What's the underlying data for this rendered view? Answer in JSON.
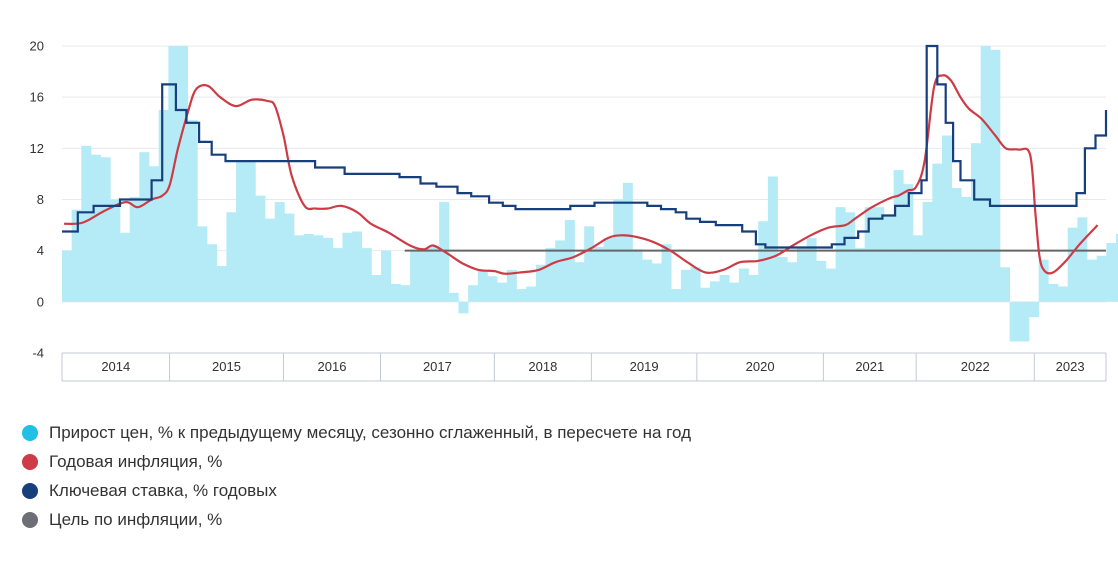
{
  "chart_data": {
    "type": "bar+line",
    "title": "",
    "ylim": [
      -4,
      20
    ],
    "yticks": [
      20,
      16,
      12,
      8,
      4,
      0,
      -4
    ],
    "xlim": [
      2013.9,
      2023.8
    ],
    "year_labels": [
      {
        "label": "2014",
        "from": 2013.9,
        "to": 2014.92
      },
      {
        "label": "2015",
        "from": 2014.92,
        "to": 2016.0
      },
      {
        "label": "2016",
        "from": 2016.0,
        "to": 2016.92
      },
      {
        "label": "2017",
        "from": 2016.92,
        "to": 2018.0
      },
      {
        "label": "2018",
        "from": 2018.0,
        "to": 2018.92
      },
      {
        "label": "2019",
        "from": 2018.92,
        "to": 2019.92
      },
      {
        "label": "2020",
        "from": 2019.92,
        "to": 2021.12
      },
      {
        "label": "2021",
        "from": 2021.12,
        "to": 2022.0
      },
      {
        "label": "2022",
        "from": 2022.0,
        "to": 2023.12
      },
      {
        "label": "2023",
        "from": 2023.12,
        "to": 2023.8
      }
    ],
    "series": [
      {
        "name": "Прирост цен, % к предыдущему месяцу, сезонно сглаженный, в пересчете на год",
        "type": "bar",
        "color": "#b4ebf6",
        "x_start": 2013.9,
        "step": 0.0917,
        "values": [
          4.0,
          7.2,
          12.2,
          11.5,
          11.3,
          8.0,
          5.4,
          8.2,
          11.7,
          10.6,
          15.0,
          20.0,
          20.0,
          14.2,
          5.9,
          4.5,
          2.8,
          7.0,
          11.0,
          11.0,
          8.3,
          6.5,
          7.8,
          6.9,
          5.2,
          5.3,
          5.2,
          5.0,
          4.2,
          5.4,
          5.5,
          4.2,
          2.1,
          4.0,
          1.4,
          1.3,
          4.0,
          4.2,
          4.4,
          7.8,
          0.7,
          -0.9,
          1.3,
          2.5,
          2.0,
          1.5,
          2.5,
          1.0,
          1.2,
          2.9,
          4.2,
          4.8,
          6.4,
          3.1,
          5.9,
          4.3,
          5.0,
          8.0,
          9.3,
          4.1,
          3.3,
          3.0,
          4.5,
          1.0,
          2.5,
          2.7,
          1.1,
          1.6,
          2.1,
          1.5,
          2.6,
          2.1,
          6.3,
          9.8,
          3.5,
          3.1,
          4.3,
          5.0,
          3.2,
          2.6,
          7.4,
          7.0,
          4.2,
          7.4,
          7.4,
          6.8,
          10.3,
          9.2,
          5.2,
          7.8,
          10.8,
          13.0,
          8.9,
          8.2,
          12.4,
          20.0,
          19.7,
          2.7,
          -3.1,
          -3.1,
          -1.2,
          3.3,
          1.4,
          1.2,
          5.8,
          6.6,
          3.3,
          3.6,
          4.6,
          5.3,
          5.7,
          12.3,
          11.0,
          14.5
        ]
      },
      {
        "name": "Годовая инфляция, %",
        "type": "line",
        "color": "#cd3c46",
        "points": [
          [
            2013.92,
            6.1
          ],
          [
            2014.1,
            6.2
          ],
          [
            2014.3,
            7.1
          ],
          [
            2014.5,
            7.8
          ],
          [
            2014.62,
            7.4
          ],
          [
            2014.75,
            8.0
          ],
          [
            2014.85,
            8.3
          ],
          [
            2014.92,
            9.1
          ],
          [
            2015.0,
            12.0
          ],
          [
            2015.1,
            15.0
          ],
          [
            2015.17,
            16.6
          ],
          [
            2015.28,
            16.9
          ],
          [
            2015.4,
            16.0
          ],
          [
            2015.55,
            15.3
          ],
          [
            2015.7,
            15.8
          ],
          [
            2015.85,
            15.7
          ],
          [
            2015.92,
            15.3
          ],
          [
            2016.0,
            13.0
          ],
          [
            2016.08,
            9.8
          ],
          [
            2016.2,
            7.5
          ],
          [
            2016.3,
            7.3
          ],
          [
            2016.42,
            7.3
          ],
          [
            2016.55,
            7.5
          ],
          [
            2016.7,
            7.0
          ],
          [
            2016.83,
            6.1
          ],
          [
            2017.0,
            5.4
          ],
          [
            2017.2,
            4.4
          ],
          [
            2017.33,
            4.1
          ],
          [
            2017.42,
            4.4
          ],
          [
            2017.55,
            3.8
          ],
          [
            2017.7,
            3.0
          ],
          [
            2017.85,
            2.5
          ],
          [
            2018.0,
            2.4
          ],
          [
            2018.1,
            2.2
          ],
          [
            2018.25,
            2.3
          ],
          [
            2018.42,
            2.5
          ],
          [
            2018.58,
            3.1
          ],
          [
            2018.75,
            3.5
          ],
          [
            2018.92,
            4.2
          ],
          [
            2019.08,
            5.0
          ],
          [
            2019.2,
            5.2
          ],
          [
            2019.33,
            5.1
          ],
          [
            2019.5,
            4.7
          ],
          [
            2019.67,
            4.0
          ],
          [
            2019.83,
            3.1
          ],
          [
            2020.0,
            2.3
          ],
          [
            2020.17,
            2.5
          ],
          [
            2020.33,
            3.1
          ],
          [
            2020.5,
            3.2
          ],
          [
            2020.67,
            3.6
          ],
          [
            2020.83,
            4.4
          ],
          [
            2021.0,
            5.2
          ],
          [
            2021.17,
            5.8
          ],
          [
            2021.33,
            6.0
          ],
          [
            2021.42,
            6.5
          ],
          [
            2021.58,
            7.4
          ],
          [
            2021.75,
            8.1
          ],
          [
            2021.83,
            8.3
          ],
          [
            2021.92,
            8.7
          ],
          [
            2022.0,
            9.0
          ],
          [
            2022.08,
            11.0
          ],
          [
            2022.17,
            16.8
          ],
          [
            2022.25,
            17.7
          ],
          [
            2022.33,
            17.3
          ],
          [
            2022.42,
            16.0
          ],
          [
            2022.5,
            15.1
          ],
          [
            2022.62,
            14.3
          ],
          [
            2022.75,
            13.0
          ],
          [
            2022.85,
            12.0
          ],
          [
            2022.97,
            11.9
          ],
          [
            2023.08,
            11.5
          ],
          [
            2023.13,
            7.0
          ],
          [
            2023.17,
            3.5
          ],
          [
            2023.22,
            2.4
          ],
          [
            2023.3,
            2.3
          ],
          [
            2023.42,
            3.2
          ],
          [
            2023.55,
            4.5
          ],
          [
            2023.72,
            6.0
          ]
        ]
      },
      {
        "name": "Ключевая ставка, % годовых",
        "type": "step",
        "color": "#173f7c",
        "points": [
          [
            2013.9,
            5.5
          ],
          [
            2014.05,
            5.5
          ],
          [
            2014.05,
            7.0
          ],
          [
            2014.2,
            7.0
          ],
          [
            2014.2,
            7.5
          ],
          [
            2014.45,
            7.5
          ],
          [
            2014.45,
            8.0
          ],
          [
            2014.75,
            8.0
          ],
          [
            2014.75,
            9.5
          ],
          [
            2014.85,
            9.5
          ],
          [
            2014.85,
            17.0
          ],
          [
            2014.98,
            17.0
          ],
          [
            2014.98,
            15.0
          ],
          [
            2015.08,
            15.0
          ],
          [
            2015.08,
            14.0
          ],
          [
            2015.2,
            14.0
          ],
          [
            2015.2,
            12.5
          ],
          [
            2015.32,
            12.5
          ],
          [
            2015.32,
            11.5
          ],
          [
            2015.45,
            11.5
          ],
          [
            2015.45,
            11.0
          ],
          [
            2016.3,
            11.0
          ],
          [
            2016.3,
            10.5
          ],
          [
            2016.58,
            10.5
          ],
          [
            2016.58,
            10.0
          ],
          [
            2017.1,
            10.0
          ],
          [
            2017.1,
            9.75
          ],
          [
            2017.3,
            9.75
          ],
          [
            2017.3,
            9.25
          ],
          [
            2017.45,
            9.25
          ],
          [
            2017.45,
            9.0
          ],
          [
            2017.65,
            9.0
          ],
          [
            2017.65,
            8.5
          ],
          [
            2017.78,
            8.5
          ],
          [
            2017.78,
            8.25
          ],
          [
            2017.95,
            8.25
          ],
          [
            2017.95,
            7.75
          ],
          [
            2018.08,
            7.75
          ],
          [
            2018.08,
            7.5
          ],
          [
            2018.2,
            7.5
          ],
          [
            2018.2,
            7.25
          ],
          [
            2018.72,
            7.25
          ],
          [
            2018.72,
            7.5
          ],
          [
            2018.95,
            7.5
          ],
          [
            2018.95,
            7.75
          ],
          [
            2019.45,
            7.75
          ],
          [
            2019.45,
            7.5
          ],
          [
            2019.58,
            7.5
          ],
          [
            2019.58,
            7.25
          ],
          [
            2019.72,
            7.25
          ],
          [
            2019.72,
            7.0
          ],
          [
            2019.82,
            7.0
          ],
          [
            2019.82,
            6.5
          ],
          [
            2019.95,
            6.5
          ],
          [
            2019.95,
            6.25
          ],
          [
            2020.1,
            6.25
          ],
          [
            2020.1,
            6.0
          ],
          [
            2020.35,
            6.0
          ],
          [
            2020.35,
            5.5
          ],
          [
            2020.48,
            5.5
          ],
          [
            2020.48,
            4.5
          ],
          [
            2020.57,
            4.5
          ],
          [
            2020.57,
            4.25
          ],
          [
            2021.2,
            4.25
          ],
          [
            2021.2,
            4.5
          ],
          [
            2021.32,
            4.5
          ],
          [
            2021.32,
            5.0
          ],
          [
            2021.45,
            5.0
          ],
          [
            2021.45,
            5.5
          ],
          [
            2021.55,
            5.5
          ],
          [
            2021.55,
            6.5
          ],
          [
            2021.68,
            6.5
          ],
          [
            2021.68,
            6.75
          ],
          [
            2021.8,
            6.75
          ],
          [
            2021.8,
            7.5
          ],
          [
            2021.93,
            7.5
          ],
          [
            2021.93,
            8.5
          ],
          [
            2022.05,
            8.5
          ],
          [
            2022.05,
            9.5
          ],
          [
            2022.1,
            9.5
          ],
          [
            2022.1,
            20.0
          ],
          [
            2022.2,
            20.0
          ],
          [
            2022.2,
            17.0
          ],
          [
            2022.28,
            17.0
          ],
          [
            2022.28,
            14.0
          ],
          [
            2022.35,
            14.0
          ],
          [
            2022.35,
            11.0
          ],
          [
            2022.42,
            11.0
          ],
          [
            2022.42,
            9.5
          ],
          [
            2022.55,
            9.5
          ],
          [
            2022.55,
            8.0
          ],
          [
            2022.7,
            8.0
          ],
          [
            2022.7,
            7.5
          ],
          [
            2023.52,
            7.5
          ],
          [
            2023.52,
            8.5
          ],
          [
            2023.6,
            8.5
          ],
          [
            2023.6,
            12.0
          ],
          [
            2023.7,
            12.0
          ],
          [
            2023.7,
            13.0
          ],
          [
            2023.8,
            13.0
          ],
          [
            2023.8,
            15.0
          ]
        ]
      },
      {
        "name": "Цель по инфляции, %",
        "type": "hline",
        "color": "#666666",
        "value": 4,
        "from": 2017.15
      }
    ]
  },
  "legend": {
    "items": [
      {
        "label": "Прирост цен, % к предыдущему месяцу, сезонно сглаженный, в пересчете на год",
        "color": "#1ec0e6"
      },
      {
        "label": "Годовая инфляция, %",
        "color": "#cd3c46"
      },
      {
        "label": "Ключевая ставка, % годовых",
        "color": "#173f7c"
      },
      {
        "label": "Цель по инфляции, %",
        "color": "#6e6e76"
      }
    ]
  }
}
